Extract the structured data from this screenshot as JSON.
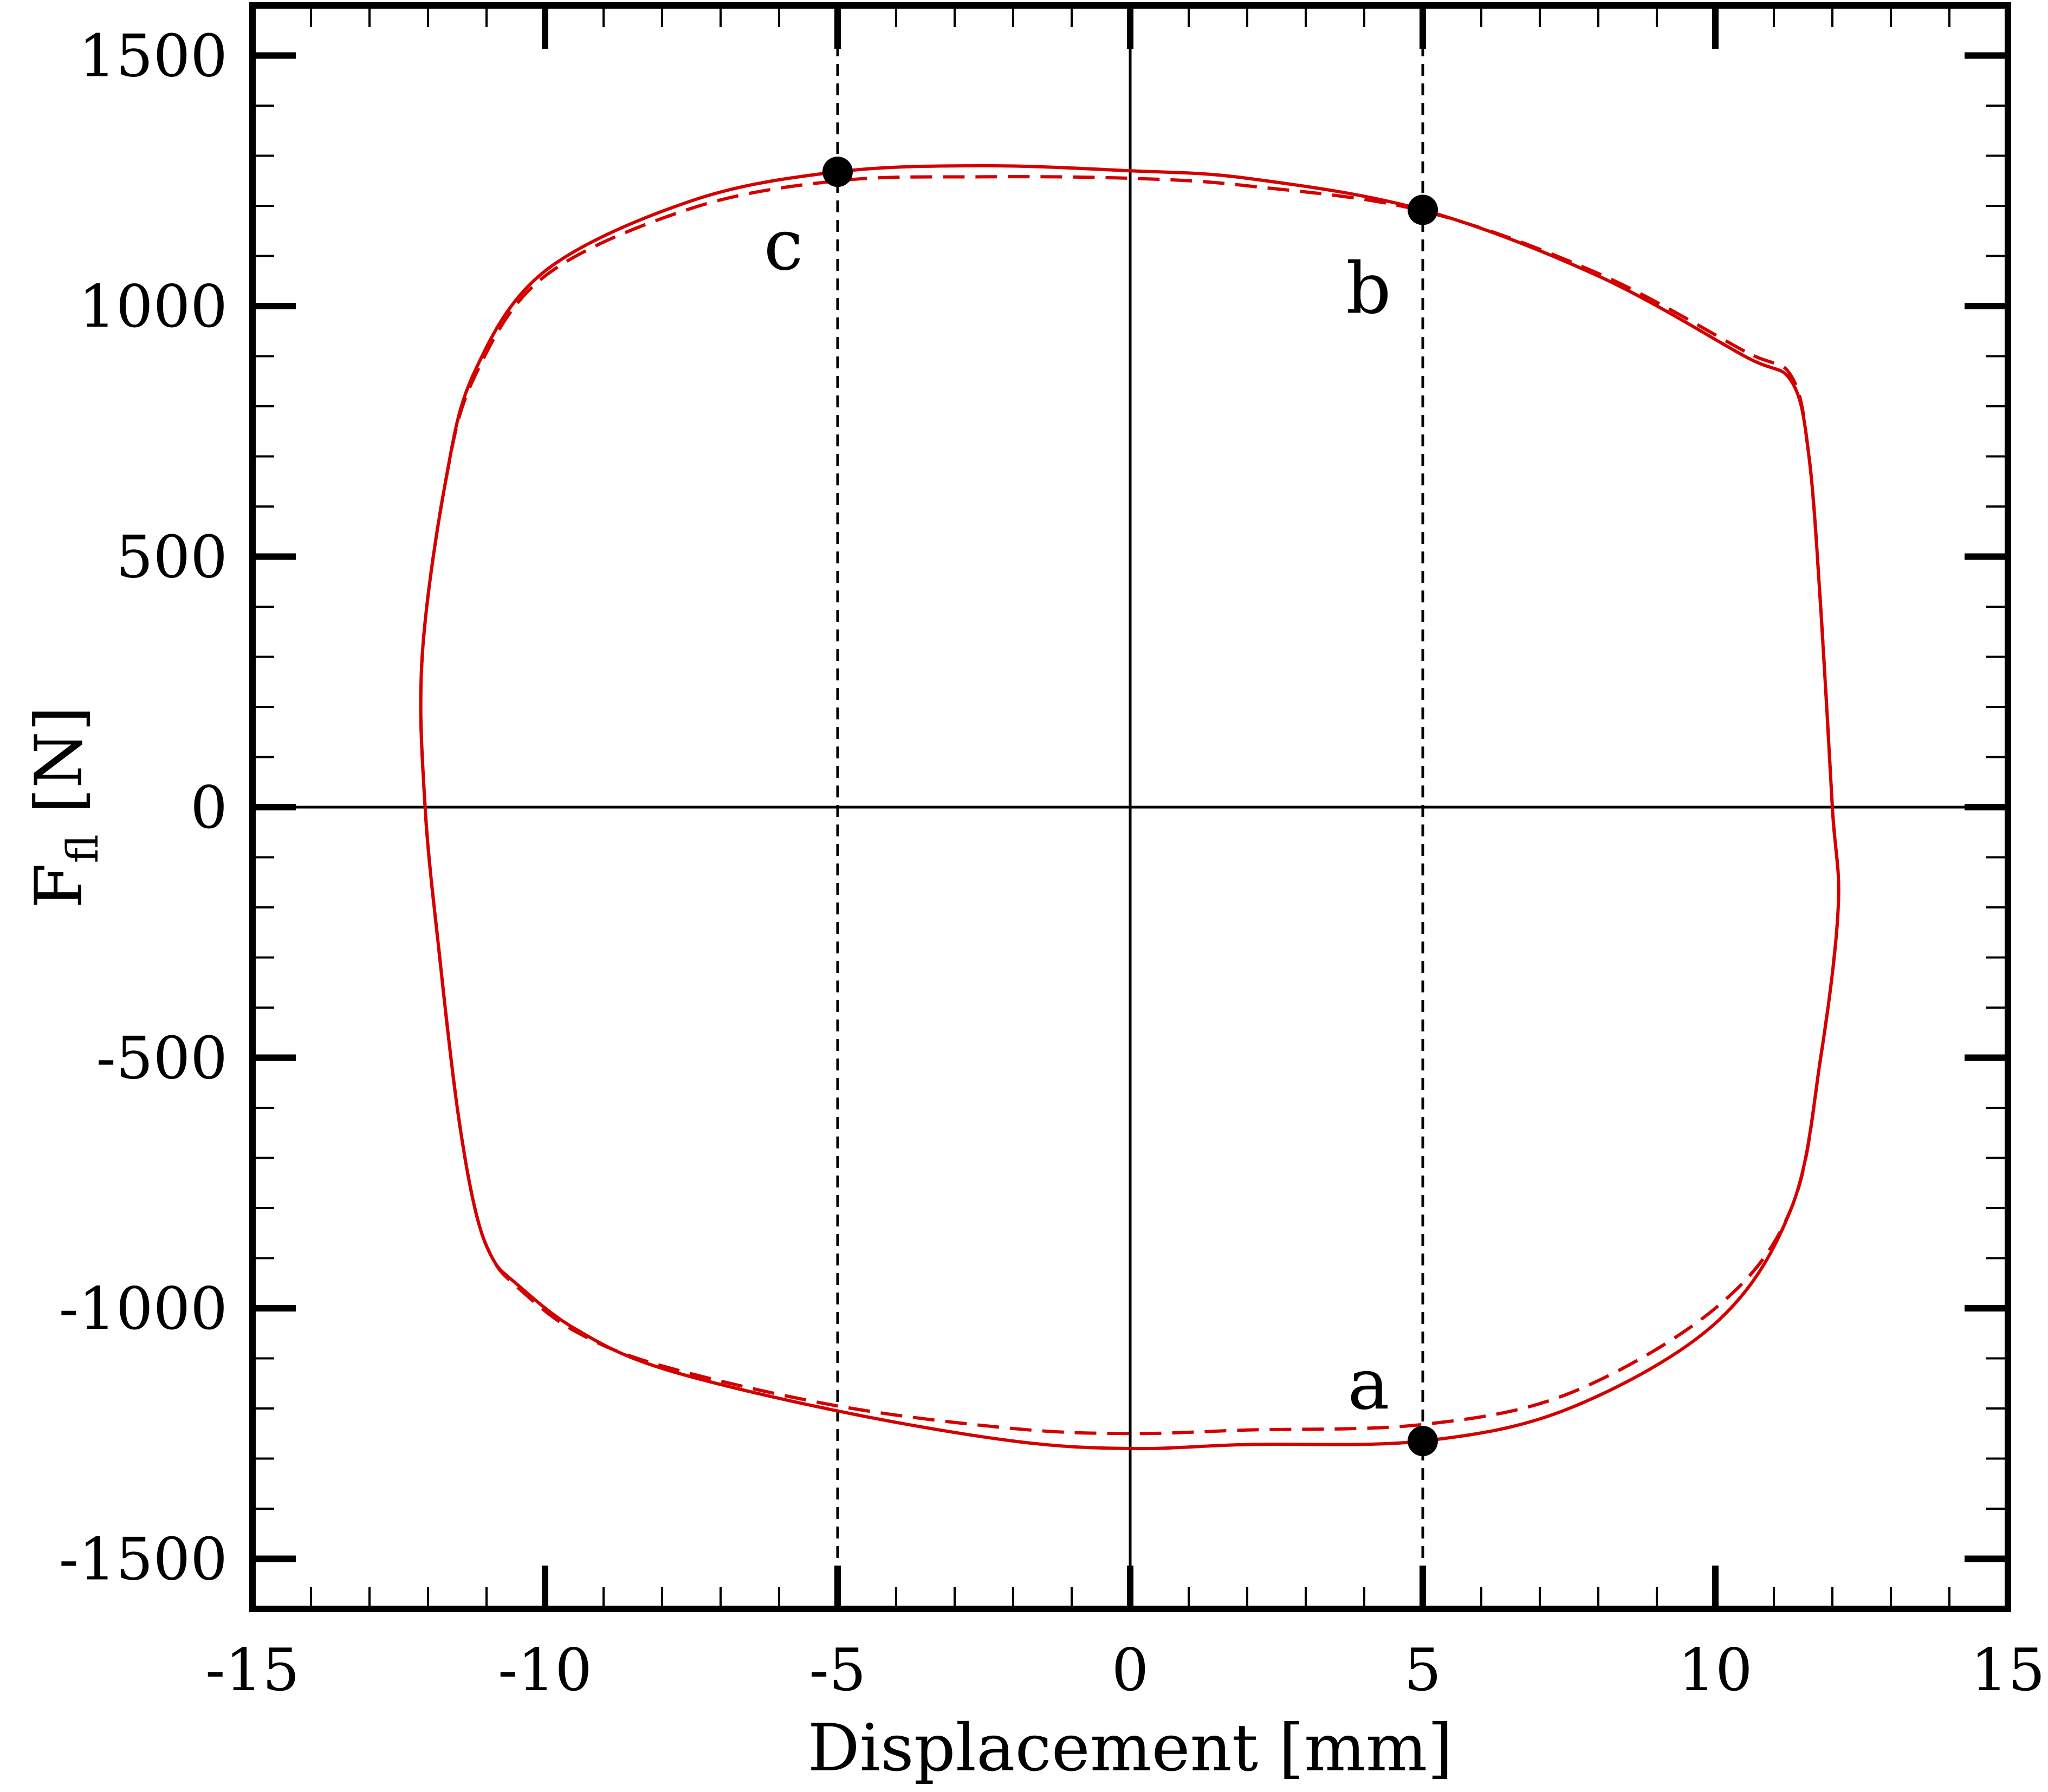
{
  "chart_data": {
    "type": "line",
    "title": "",
    "xlabel": "Displacement [mm]",
    "ylabel": {
      "main": "F",
      "subscript": "fl",
      "unit": "[N]"
    },
    "xlim": [
      -15,
      15
    ],
    "ylim": [
      -1600,
      1600
    ],
    "x_ticks": [
      -15,
      -10,
      -5,
      0,
      5,
      10,
      15
    ],
    "y_ticks": [
      -1500,
      -1000,
      -500,
      0,
      500,
      1000,
      1500
    ],
    "x_tick_labels": [
      "-15",
      "-10",
      "-5",
      "0",
      "5",
      "10",
      "15"
    ],
    "y_tick_labels": [
      "-1500",
      "-1000",
      "-500",
      "0",
      "500",
      "1000",
      "1500"
    ],
    "minor_x_step": 1,
    "minor_y_step": 100,
    "grid": false,
    "curve_color": "#d40000",
    "reference_lines": {
      "horizontal": [
        0
      ],
      "vertical": [
        0
      ]
    },
    "dashed_verticals": [
      -5,
      5
    ],
    "series": [
      {
        "style": "solid",
        "x": [
          10.5,
          8.0,
          5.0,
          2.0,
          0.0,
          -2.5,
          -5.0,
          -7.5,
          -10.0,
          -11.2,
          -11.7,
          -12.1,
          -12.05,
          -11.8,
          -11.5,
          -11.2,
          -10.9,
          -10.5,
          -9.5,
          -8.0,
          -5.0,
          -2.0,
          0.0,
          2.0,
          5.0,
          7.5,
          10.0,
          11.3,
          11.8,
          12.1,
          12.0,
          11.8,
          11.6,
          11.3,
          10.5
        ],
        "y": [
          900,
          1060,
          1192,
          1255,
          1270,
          1280,
          1268,
          1210,
          1070,
          870,
          650,
          300,
          0,
          -300,
          -600,
          -800,
          -900,
          -950,
          -1040,
          -1120,
          -1205,
          -1265,
          -1280,
          -1272,
          -1265,
          -1200,
          -1030,
          -800,
          -500,
          -200,
          0,
          400,
          700,
          850,
          900
        ]
      },
      {
        "style": "dashed",
        "x": [
          10.5,
          8.0,
          5.0,
          2.0,
          0.0,
          -2.5,
          -5.0,
          -7.5,
          -10.0,
          -11.2,
          -11.7,
          -12.1,
          -12.05,
          -11.8,
          -11.5,
          -11.2,
          -10.9,
          -10.5,
          -9.5,
          -8.0,
          -5.0,
          -2.0,
          0.0,
          2.0,
          5.0,
          7.5,
          10.0,
          11.3,
          11.8,
          12.1,
          12.0,
          11.8,
          11.6,
          11.3,
          10.5
        ],
        "y": [
          910,
          1065,
          1190,
          1240,
          1255,
          1258,
          1250,
          1195,
          1060,
          860,
          650,
          300,
          0,
          -300,
          -600,
          -800,
          -900,
          -955,
          -1045,
          -1115,
          -1195,
          -1240,
          -1250,
          -1243,
          -1232,
          -1170,
          -1000,
          -800,
          -500,
          -200,
          0,
          400,
          700,
          860,
          910
        ]
      }
    ],
    "points": [
      {
        "label": "a",
        "x": 5,
        "y": -1265
      },
      {
        "label": "b",
        "x": 5,
        "y": 1192
      },
      {
        "label": "c",
        "x": -5,
        "y": 1268
      }
    ]
  }
}
